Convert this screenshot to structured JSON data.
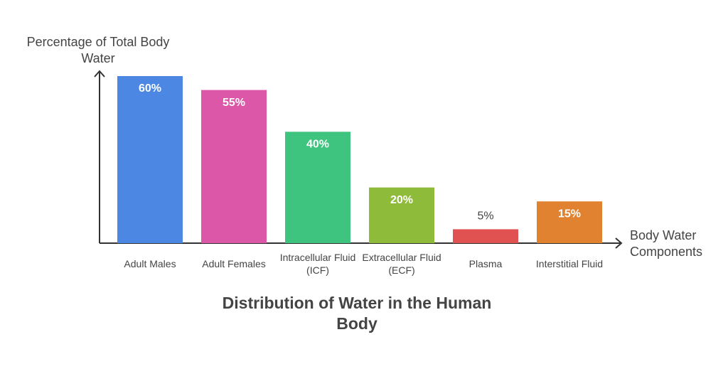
{
  "chart_data": {
    "type": "bar",
    "title": "Distribution of Water in the Human Body",
    "y_label": "Percentage of Total Body Water",
    "x_label": "Body Water Components",
    "categories": [
      "Adult Males",
      "Adult Females",
      "Intracellular Fluid (ICF)",
      "Extracellular Fluid (ECF)",
      "Plasma",
      "Interstitial Fluid"
    ],
    "values": [
      60,
      55,
      40,
      20,
      5,
      15
    ],
    "value_labels": [
      "60%",
      "55%",
      "40%",
      "20%",
      "5%",
      "15%"
    ],
    "colors": [
      "#4c87e4",
      "#dd57a8",
      "#3ec47e",
      "#8fbb3a",
      "#e05151",
      "#e0822f"
    ],
    "ylim": [
      0,
      60
    ]
  }
}
